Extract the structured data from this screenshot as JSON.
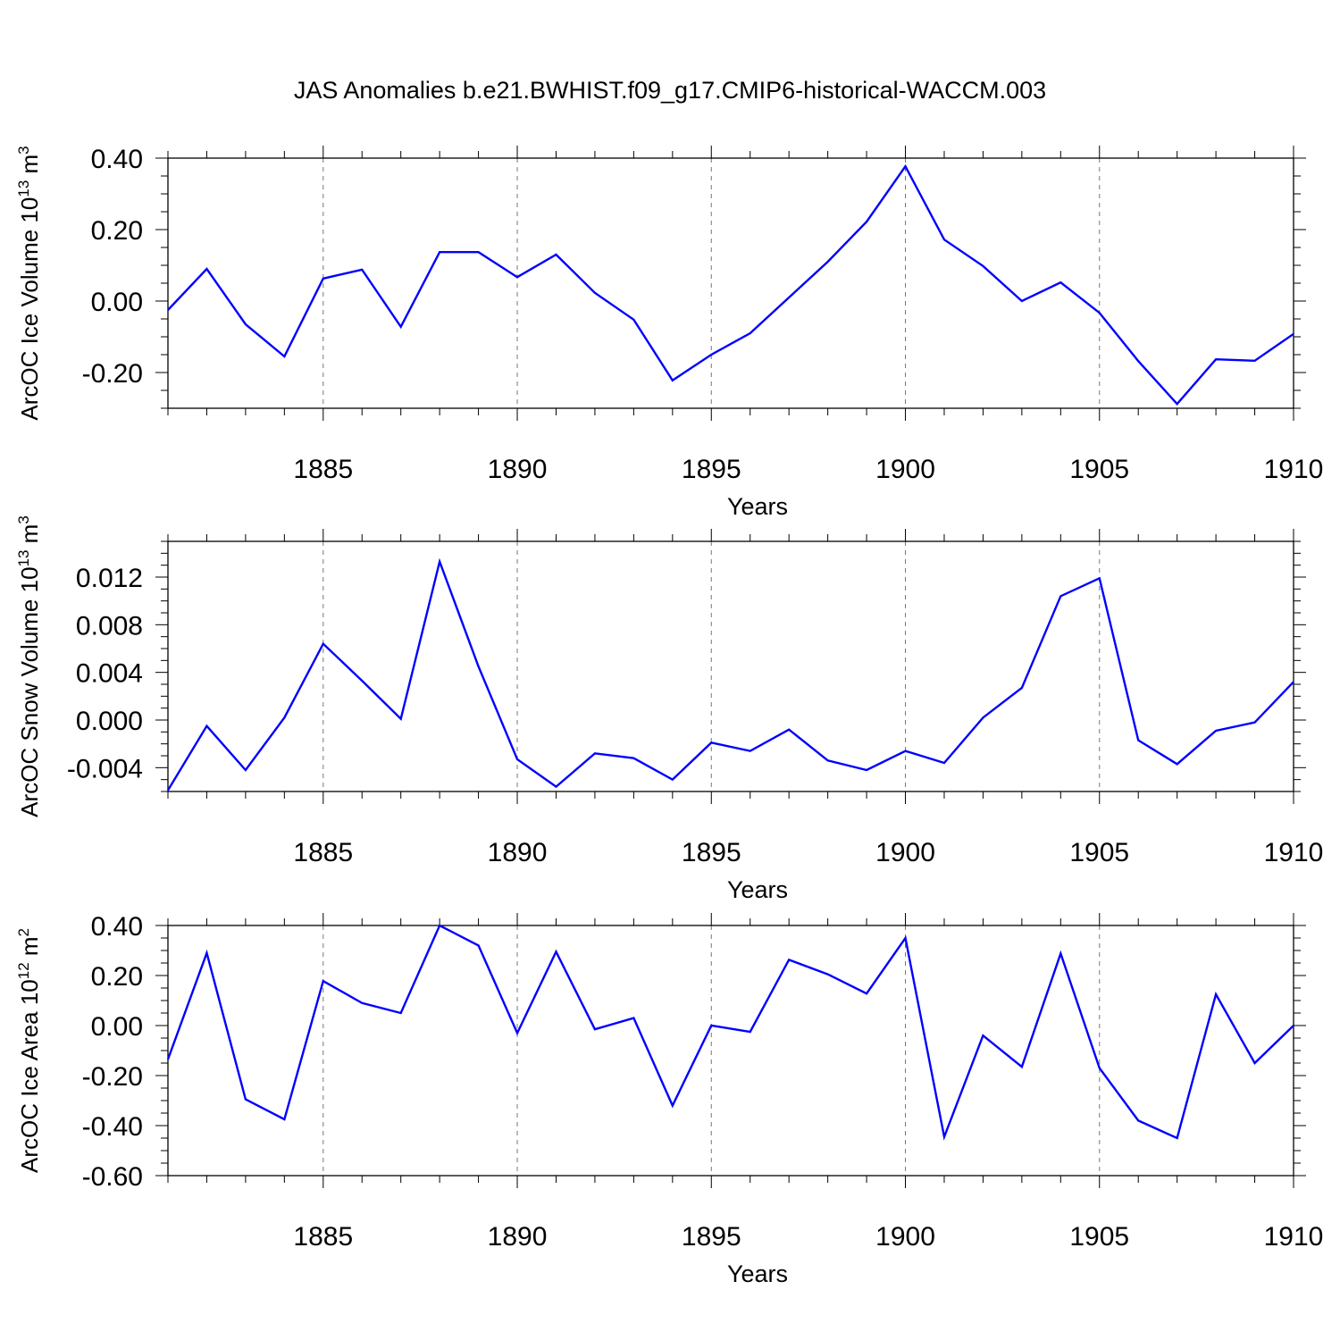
{
  "figure": {
    "title": "JAS Anomalies b.e21.BWHIST.f09_g17.CMIP6-historical-WACCM.003",
    "line_color": "#0000ff"
  },
  "chart_data": [
    {
      "type": "line",
      "ylabel": "ArcOC Ice Volume 10",
      "ylabel_exp": "13",
      "ylabel_unit": "m",
      "ylabel_unit_exp": "3",
      "xlabel": "Years",
      "xlim": [
        1881,
        1910
      ],
      "ylim": [
        -0.3,
        0.4
      ],
      "yticks": [
        -0.2,
        0.0,
        0.2,
        0.4
      ],
      "yticklabels": [
        "-0.20",
        "0.00",
        "0.20",
        "0.40"
      ],
      "yminor_step": 0.05,
      "xticks": [
        1885,
        1890,
        1895,
        1900,
        1905,
        1910
      ],
      "xticklabels": [
        "1885",
        "1890",
        "1895",
        "1900",
        "1905",
        "1910"
      ],
      "grid": "dashed vertical at major x ticks",
      "x": [
        1881,
        1882,
        1883,
        1884,
        1885,
        1886,
        1887,
        1888,
        1889,
        1890,
        1891,
        1892,
        1893,
        1894,
        1895,
        1896,
        1897,
        1898,
        1899,
        1900,
        1901,
        1902,
        1903,
        1904,
        1905,
        1906,
        1907,
        1908,
        1909,
        1910
      ],
      "series": [
        {
          "values": [
            -0.025,
            0.09,
            -0.065,
            -0.155,
            0.063,
            0.088,
            -0.072,
            0.137,
            0.137,
            0.067,
            0.13,
            0.023,
            -0.052,
            -0.222,
            -0.15,
            -0.09,
            0.01,
            0.11,
            0.222,
            0.377,
            0.172,
            0.098,
            0.0,
            0.052,
            -0.033,
            -0.168,
            -0.288,
            -0.163,
            -0.167,
            -0.092
          ]
        }
      ]
    },
    {
      "type": "line",
      "ylabel": "ArcOC Snow Volume 10",
      "ylabel_exp": "13",
      "ylabel_unit": "m",
      "ylabel_unit_exp": "3",
      "xlabel": "Years",
      "xlim": [
        1881,
        1910
      ],
      "ylim": [
        -0.006,
        0.015
      ],
      "yticks": [
        -0.004,
        0.0,
        0.004,
        0.008,
        0.012
      ],
      "yticklabels": [
        "-0.004",
        "0.000",
        "0.004",
        "0.008",
        "0.012"
      ],
      "yminor_step": 0.001,
      "xticks": [
        1885,
        1890,
        1895,
        1900,
        1905,
        1910
      ],
      "xticklabels": [
        "1885",
        "1890",
        "1895",
        "1900",
        "1905",
        "1910"
      ],
      "grid": "dashed vertical at major x ticks",
      "x": [
        1881,
        1882,
        1883,
        1884,
        1885,
        1886,
        1887,
        1888,
        1889,
        1890,
        1891,
        1892,
        1893,
        1894,
        1895,
        1896,
        1897,
        1898,
        1899,
        1900,
        1901,
        1902,
        1903,
        1904,
        1905,
        1906,
        1907,
        1908,
        1909,
        1910
      ],
      "series": [
        {
          "values": [
            -0.0059,
            -0.0005,
            -0.0042,
            0.0002,
            0.0064,
            0.0033,
            0.0001,
            0.0133,
            0.0045,
            -0.0033,
            -0.0056,
            -0.0028,
            -0.0032,
            -0.005,
            -0.0019,
            -0.0026,
            -0.0008,
            -0.0034,
            -0.0042,
            -0.0026,
            -0.0036,
            0.0002,
            0.0027,
            0.0104,
            0.0119,
            -0.0017,
            -0.0037,
            -0.0009,
            -0.0002,
            0.0032
          ]
        }
      ]
    },
    {
      "type": "line",
      "ylabel": "ArcOC Ice Area 10",
      "ylabel_exp": "12",
      "ylabel_unit": "m",
      "ylabel_unit_exp": "2",
      "xlabel": "Years",
      "xlim": [
        1881,
        1910
      ],
      "ylim": [
        -0.6,
        0.4
      ],
      "yticks": [
        -0.6,
        -0.4,
        -0.2,
        0.0,
        0.2,
        0.4
      ],
      "yticklabels": [
        "-0.60",
        "-0.40",
        "-0.20",
        "0.00",
        "0.20",
        "0.40"
      ],
      "yminor_step": 0.05,
      "xticks": [
        1885,
        1890,
        1895,
        1900,
        1905,
        1910
      ],
      "xticklabels": [
        "1885",
        "1890",
        "1895",
        "1900",
        "1905",
        "1910"
      ],
      "grid": "dashed vertical at major x ticks",
      "x": [
        1881,
        1882,
        1883,
        1884,
        1885,
        1886,
        1887,
        1888,
        1889,
        1890,
        1891,
        1892,
        1893,
        1894,
        1895,
        1896,
        1897,
        1898,
        1899,
        1900,
        1901,
        1902,
        1903,
        1904,
        1905,
        1906,
        1907,
        1908,
        1909,
        1910
      ],
      "series": [
        {
          "values": [
            -0.135,
            0.29,
            -0.295,
            -0.375,
            0.178,
            0.09,
            0.05,
            0.4,
            0.32,
            -0.03,
            0.295,
            -0.015,
            0.03,
            -0.32,
            0.0,
            -0.025,
            0.263,
            0.205,
            0.128,
            0.35,
            -0.445,
            -0.04,
            -0.165,
            0.288,
            -0.17,
            -0.38,
            -0.45,
            0.125,
            -0.15,
            0.0
          ]
        }
      ]
    }
  ]
}
